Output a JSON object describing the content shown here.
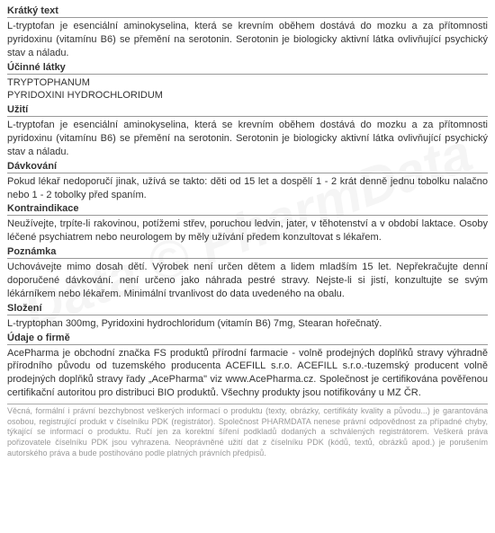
{
  "watermark": "Data © PharmData",
  "sections": [
    {
      "heading": "Krátký text",
      "text": "L-tryptofan je esenciální aminokyselina, která se krevním oběhem dostává do mozku a za přítomnosti pyridoxinu (vitamínu B6) se přemění na serotonin. Serotonin je biologicky aktivní látka ovlivňující psychický stav a náladu."
    },
    {
      "heading": "Účinné látky",
      "text": "TRYPTOPHANUM\nPYRIDOXINI HYDROCHLORIDUM"
    },
    {
      "heading": "Užití",
      "text": "L-tryptofan je esenciální aminokyselina, která se krevním oběhem dostává do mozku a za přítomnosti pyridoxinu (vitamínu B6) se přemění na serotonin. Serotonin je biologicky aktivní látka ovlivňující psychický stav a náladu."
    },
    {
      "heading": "Dávkování",
      "text": "Pokud lékař nedoporučí jinak, užívá se takto: děti od 15 let a dospělí 1 - 2 krát denně jednu tobolku nalačno nebo 1 - 2 tobolky před spaním."
    },
    {
      "heading": "Kontraindikace",
      "text": "Neužívejte, trpíte-li rakovinou, potížemi střev, poruchou ledvin, jater, v těhotenství a v období laktace. Osoby léčené psychiatrem nebo neurologem by měly užívání předem konzultovat s lékařem."
    },
    {
      "heading": "Poznámka",
      "text": "Uchovávejte mimo dosah dětí. Výrobek není určen dětem a lidem mladším 15 let. Nepřekračujte denní doporučené dávkování. není určeno jako náhrada pestré stravy. Nejste-li si jistí, konzultujte se svým lékárníkem nebo lékařem. Minimální trvanlivost do data uvedeného na obalu."
    },
    {
      "heading": "Složení",
      "text": "L-tryptophan 300mg, Pyridoxini hydrochloridum (vitamín B6) 7mg, Stearan hořečnatý."
    },
    {
      "heading": "Údaje o firmě",
      "text": "AcePharma je obchodní značka FS produktů přírodní farmacie - volně prodejných doplňků stravy výhradně přírodního původu od tuzemského producenta ACEFILL s.r.o. ACEFILL s.r.o.-tuzemský producent volně prodejných doplňků stravy řady „AcePharma\" viz www.AcePharma.cz. Společnost je certifikována pověřenou certifikační autoritou pro distribuci BIO produktů. Všechny produkty jsou notifikovány u MZ ČR."
    }
  ],
  "disclaimer": "Věcná, formální i právní bezchybnost veškerých informací o produktu (texty, obrázky, certifikáty kvality a původu...) je garantována osobou, registrující produkt v číselníku PDK (registrátor). Společnost PHARMDATA nenese právní odpovědnost za případné chyby, týkající se informací o produktu. Ručí jen za korektní šíření podkladů dodaných a schválených registrátorem. Veškerá práva pořizovatele číselníku PDK jsou vyhrazena. Neoprávněné užití dat z číselníku PDK (kódů, textů, obrázků apod.) je porušením autorského práva a bude postihováno podle platných právních předpisů."
}
